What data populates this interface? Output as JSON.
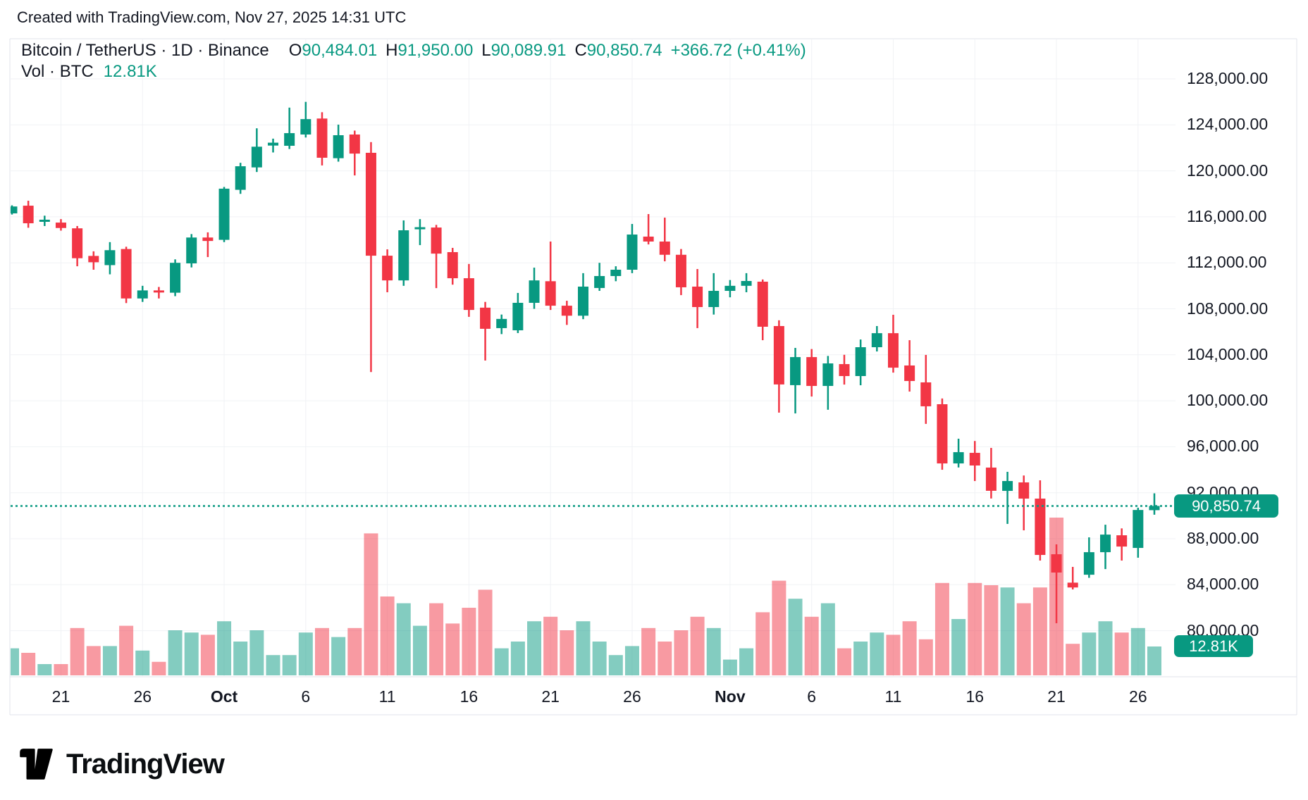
{
  "header": {
    "credit": "Created with TradingView.com, Nov 27, 2025 14:31 UTC"
  },
  "legend": {
    "symbol": "Bitcoin / TetherUS · 1D · Binance",
    "ohlc": [
      {
        "k": "O",
        "v": "90,484.01"
      },
      {
        "k": "H",
        "v": "91,950.00"
      },
      {
        "k": "L",
        "v": "90,089.91"
      },
      {
        "k": "C",
        "v": "90,850.74"
      }
    ],
    "change": "+366.72 (+0.41%)",
    "vol_label": "Vol · BTC",
    "vol_value": "12.81K"
  },
  "price_scale": {
    "labels": [
      "128,000.00",
      "124,000.00",
      "120,000.00",
      "116,000.00",
      "112,000.00",
      "108,000.00",
      "104,000.00",
      "100,000.00",
      "96,000.00",
      "92,000.00",
      "88,000.00",
      "84,000.00",
      "80,000.00"
    ],
    "price_badge": "90,850.74",
    "volume_badge": "12.81K"
  },
  "time_scale": {
    "ticks": [
      {
        "label": "21",
        "i": 3,
        "bold": false
      },
      {
        "label": "26",
        "i": 8,
        "bold": false
      },
      {
        "label": "Oct",
        "i": 13,
        "bold": true
      },
      {
        "label": "6",
        "i": 18,
        "bold": false
      },
      {
        "label": "11",
        "i": 23,
        "bold": false
      },
      {
        "label": "16",
        "i": 28,
        "bold": false
      },
      {
        "label": "21",
        "i": 33,
        "bold": false
      },
      {
        "label": "26",
        "i": 38,
        "bold": false
      },
      {
        "label": "Nov",
        "i": 44,
        "bold": true
      },
      {
        "label": "6",
        "i": 49,
        "bold": false
      },
      {
        "label": "11",
        "i": 54,
        "bold": false
      },
      {
        "label": "16",
        "i": 59,
        "bold": false
      },
      {
        "label": "21",
        "i": 64,
        "bold": false
      },
      {
        "label": "26",
        "i": 69,
        "bold": false
      }
    ]
  },
  "footer": {
    "brand": "TradingView"
  },
  "colors": {
    "up": "#089981",
    "down": "#F23645",
    "vol_up": "rgba(8,153,129,0.5)",
    "vol_down": "rgba(242,54,69,0.5)",
    "accent": "#089981",
    "text": "#131722",
    "grid": "#F0F2F5",
    "border": "#E0E3EB",
    "background": "#FFFFFF"
  },
  "chart_data": {
    "type": "candlestick_with_volume",
    "title": "Bitcoin / TetherUS · 1D · Binance",
    "interval": "1D",
    "legend_ohlc": {
      "open": 90484.01,
      "high": 91950.0,
      "low": 90089.91,
      "close": 90850.74,
      "change": 366.72,
      "change_pct": 0.41
    },
    "price_axis": {
      "min_label": 80000,
      "max_label": 128000,
      "step": 4000,
      "current_price": 90850.74
    },
    "volume_axis": {
      "unit": "K BTC",
      "current_volume_k": 12.81
    },
    "columns": [
      "date",
      "open",
      "high",
      "low",
      "close",
      "volume_k_btc"
    ],
    "candles": [
      [
        "Sep 18",
        116300,
        117000,
        116200,
        116900,
        12
      ],
      [
        "Sep 19",
        116970,
        117400,
        115050,
        115440,
        10
      ],
      [
        "Sep 20",
        115600,
        116100,
        115200,
        115750,
        5
      ],
      [
        "Sep 21",
        115500,
        115800,
        114800,
        115030,
        5
      ],
      [
        "Sep 22",
        115000,
        115200,
        111700,
        112400,
        21
      ],
      [
        "Sep 23",
        112600,
        113000,
        111400,
        112050,
        13
      ],
      [
        "Sep 24",
        111800,
        113800,
        111000,
        113100,
        13
      ],
      [
        "Sep 25",
        113200,
        113400,
        108500,
        108900,
        22
      ],
      [
        "Sep 26",
        108900,
        110000,
        108600,
        109600,
        11
      ],
      [
        "Sep 27",
        109600,
        109900,
        108900,
        109450,
        6
      ],
      [
        "Sep 28",
        109400,
        112300,
        109100,
        112000,
        20
      ],
      [
        "Sep 29",
        111950,
        114500,
        111600,
        114200,
        19
      ],
      [
        "Sep 30",
        114200,
        114650,
        112500,
        113900,
        18
      ],
      [
        "Oct 1",
        114000,
        118600,
        113800,
        118450,
        24
      ],
      [
        "Oct 2",
        118350,
        120700,
        118000,
        120400,
        15
      ],
      [
        "Oct 3",
        120300,
        123700,
        119900,
        122100,
        20
      ],
      [
        "Oct 4",
        122200,
        122800,
        121600,
        122450,
        9
      ],
      [
        "Oct 5",
        122180,
        125500,
        121900,
        123280,
        9
      ],
      [
        "Oct 6",
        123160,
        126000,
        122900,
        124500,
        19
      ],
      [
        "Oct 7",
        124550,
        125100,
        120470,
        121140,
        21
      ],
      [
        "Oct 8",
        121100,
        124020,
        120800,
        123100,
        17
      ],
      [
        "Oct 9",
        123160,
        123500,
        119600,
        121500,
        21
      ],
      [
        "Oct 10",
        121570,
        122500,
        102500,
        112620,
        63
      ],
      [
        "Oct 11",
        112620,
        113170,
        109440,
        110470,
        35
      ],
      [
        "Oct 12",
        110470,
        115690,
        110000,
        114830,
        32
      ],
      [
        "Oct 13",
        115000,
        115800,
        113540,
        115100,
        22
      ],
      [
        "Oct 14",
        115070,
        115300,
        109800,
        112800,
        32
      ],
      [
        "Oct 15",
        112930,
        113300,
        110100,
        110660,
        23
      ],
      [
        "Oct 16",
        110660,
        111900,
        107300,
        107900,
        30
      ],
      [
        "Oct 17",
        108100,
        108600,
        103500,
        106260,
        38
      ],
      [
        "Oct 18",
        106320,
        107500,
        105800,
        107120,
        12
      ],
      [
        "Oct 19",
        106130,
        109380,
        105890,
        108520,
        15
      ],
      [
        "Oct 20",
        108520,
        111580,
        108000,
        110470,
        24
      ],
      [
        "Oct 21",
        110400,
        113850,
        107900,
        108270,
        26
      ],
      [
        "Oct 22",
        108270,
        108700,
        106600,
        107400,
        20
      ],
      [
        "Oct 23",
        107400,
        111100,
        107100,
        109930,
        24
      ],
      [
        "Oct 24",
        109810,
        112000,
        109560,
        110850,
        15
      ],
      [
        "Oct 25",
        110850,
        111700,
        110400,
        111400,
        9
      ],
      [
        "Oct 26",
        111400,
        115380,
        111100,
        114460,
        13
      ],
      [
        "Oct 27",
        114280,
        116240,
        113600,
        113850,
        21
      ],
      [
        "Oct 28",
        113850,
        115930,
        112130,
        112700,
        15
      ],
      [
        "Oct 29",
        112700,
        113200,
        109190,
        109870,
        20
      ],
      [
        "Oct 30",
        109930,
        111460,
        106320,
        108150,
        26
      ],
      [
        "Oct 31",
        108150,
        111100,
        107500,
        109560,
        21
      ],
      [
        "Nov 1",
        109560,
        110500,
        109000,
        110000,
        7
      ],
      [
        "Nov 2",
        110000,
        111100,
        109440,
        110420,
        12
      ],
      [
        "Nov 3",
        110360,
        110550,
        105270,
        106440,
        28
      ],
      [
        "Nov 4",
        106500,
        107000,
        98970,
        101420,
        42
      ],
      [
        "Nov 5",
        101360,
        104600,
        98900,
        103800,
        34
      ],
      [
        "Nov 6",
        103800,
        104500,
        100370,
        101290,
        26
      ],
      [
        "Nov 7",
        101290,
        103900,
        99220,
        103250,
        32
      ],
      [
        "Nov 8",
        103190,
        104000,
        101410,
        102150,
        12
      ],
      [
        "Nov 9",
        102150,
        105330,
        101350,
        104660,
        15
      ],
      [
        "Nov 10",
        104660,
        106500,
        104290,
        105880,
        19
      ],
      [
        "Nov 11",
        105880,
        107480,
        102450,
        102880,
        18
      ],
      [
        "Nov 12",
        103070,
        105270,
        100800,
        101720,
        24
      ],
      [
        "Nov 13",
        101600,
        103990,
        97990,
        99520,
        16
      ],
      [
        "Nov 14",
        99700,
        100200,
        94000,
        94550,
        41
      ],
      [
        "Nov 15",
        94550,
        96700,
        94200,
        95530,
        25
      ],
      [
        "Nov 16",
        95470,
        96500,
        93020,
        94370,
        41
      ],
      [
        "Nov 17",
        94190,
        95900,
        91500,
        92170,
        40
      ],
      [
        "Nov 18",
        92160,
        93820,
        89290,
        93020,
        39
      ],
      [
        "Nov 19",
        92900,
        93500,
        88730,
        91490,
        32
      ],
      [
        "Nov 20",
        91490,
        93080,
        86100,
        86590,
        39
      ],
      [
        "Nov 21",
        86650,
        87510,
        80650,
        85060,
        70
      ],
      [
        "Nov 22",
        84180,
        85550,
        83590,
        83760,
        14
      ],
      [
        "Nov 23",
        84870,
        88120,
        84600,
        86830,
        19
      ],
      [
        "Nov 24",
        86830,
        89220,
        85360,
        88360,
        24
      ],
      [
        "Nov 25",
        88300,
        88900,
        86100,
        87320,
        19
      ],
      [
        "Nov 26",
        87200,
        90700,
        86350,
        90500,
        21
      ],
      [
        "Nov 27",
        90484.01,
        91950.0,
        90089.91,
        90850.74,
        12.81
      ]
    ]
  }
}
